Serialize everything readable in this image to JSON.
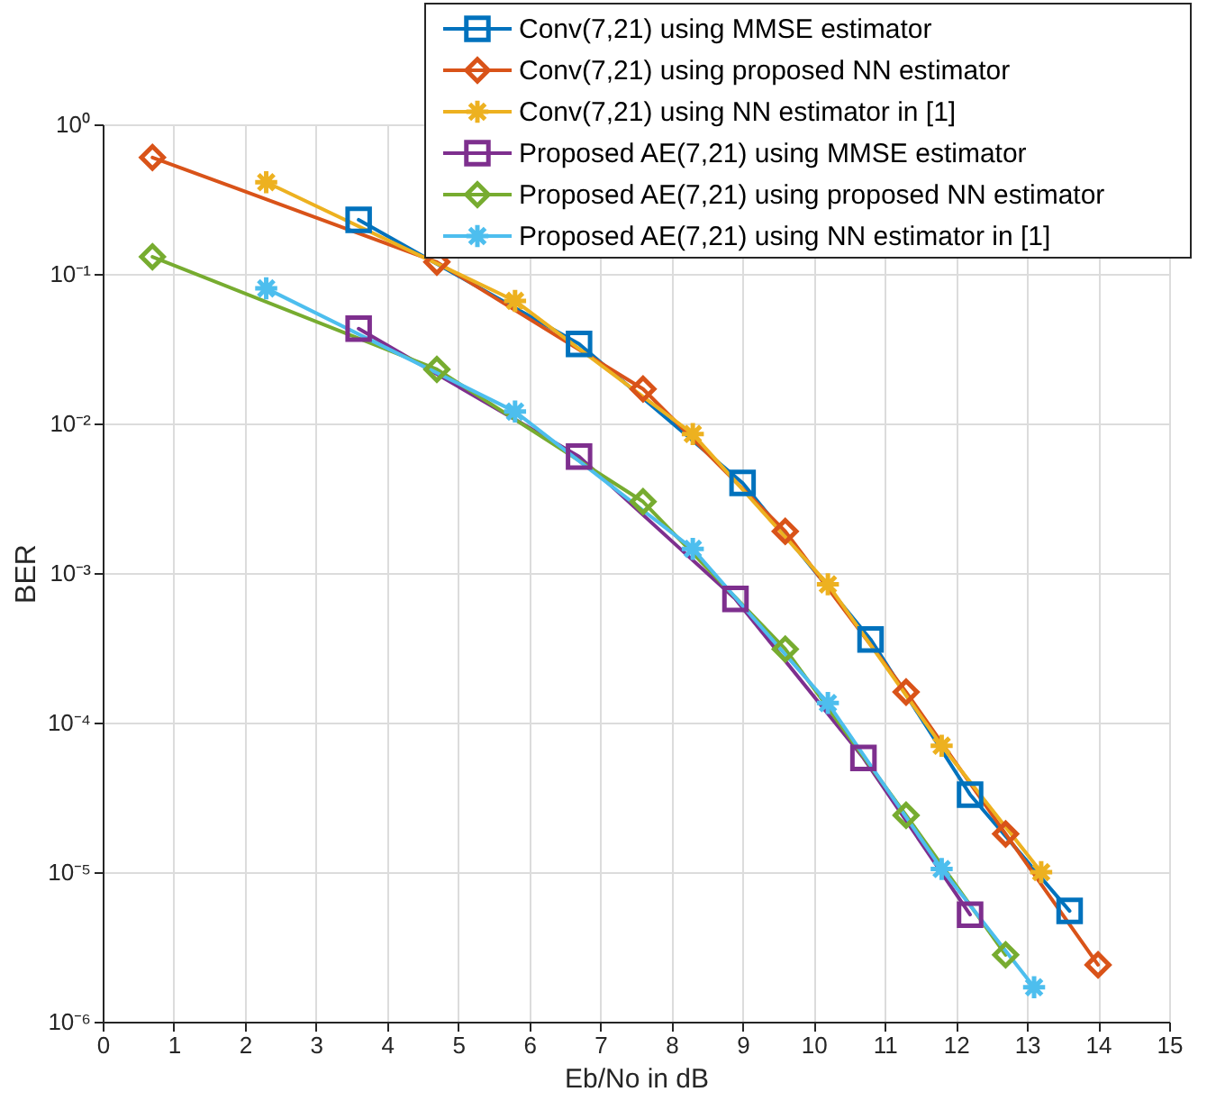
{
  "chart_data": {
    "type": "line",
    "xlabel": "Eb/No in dB",
    "ylabel": "BER",
    "log": "y",
    "grid": true,
    "legend": "top right",
    "line_style": "solid",
    "xlim": [
      0,
      15
    ],
    "xticks": [
      0,
      1,
      2,
      3,
      4,
      5,
      6,
      7,
      8,
      9,
      10,
      11,
      12,
      13,
      14,
      15
    ],
    "ylim": [
      1e-06,
      1
    ],
    "yticks": [
      {
        "value": 1e-06,
        "label": "10⁻⁶"
      },
      {
        "value": 1e-05,
        "label": "10⁻⁵"
      },
      {
        "value": 0.0001,
        "label": "10⁻⁴"
      },
      {
        "value": 0.001,
        "label": "10⁻³"
      },
      {
        "value": 0.01,
        "label": "10⁻²"
      },
      {
        "value": 0.1,
        "label": "10⁻¹"
      },
      {
        "value": 1,
        "label": "10⁰"
      }
    ],
    "series": [
      {
        "name": "Conv(7,21) using MMSE estimator",
        "color": "#0072bd",
        "marker": "square",
        "x": [
          3.6,
          6.7,
          9.0,
          10.8,
          12.2,
          13.6
        ],
        "values": [
          0.23,
          0.034,
          0.004,
          0.00036,
          3.3e-05,
          5.5e-06
        ]
      },
      {
        "name": "Conv(7,21) using proposed NN estimator",
        "color": "#d95319",
        "marker": "diamond",
        "x": [
          0.7,
          4.7,
          7.6,
          9.6,
          11.3,
          12.7,
          14.0
        ],
        "values": [
          0.6,
          0.12,
          0.017,
          0.0019,
          0.00016,
          1.8e-05,
          2.4e-06
        ]
      },
      {
        "name": "Conv(7,21) using NN estimator in [1]",
        "color": "#edb120",
        "marker": "cross",
        "x": [
          2.3,
          5.8,
          8.3,
          10.2,
          11.8,
          13.2
        ],
        "values": [
          0.41,
          0.066,
          0.0085,
          0.00084,
          7e-05,
          1e-05
        ]
      },
      {
        "name": "Proposed AE(7,21) using MMSE estimator",
        "color": "#7e2f8e",
        "marker": "square",
        "x": [
          3.6,
          6.7,
          8.9,
          10.7,
          12.2
        ],
        "values": [
          0.043,
          0.006,
          0.00067,
          5.8e-05,
          5.2e-06
        ]
      },
      {
        "name": "Proposed AE(7,21)  using proposed NN estimator",
        "color": "#77ac30",
        "marker": "diamond",
        "x": [
          0.7,
          4.7,
          7.6,
          9.6,
          11.3,
          12.7
        ],
        "values": [
          0.13,
          0.023,
          0.003,
          0.00031,
          2.4e-05,
          2.8e-06
        ]
      },
      {
        "name": "Proposed AE(7,21) using NN estimator in [1]",
        "color": "#4dbeee",
        "marker": "cross",
        "x": [
          2.3,
          5.8,
          8.3,
          10.2,
          11.8,
          13.1
        ],
        "values": [
          0.08,
          0.012,
          0.00145,
          0.000135,
          1.05e-05,
          1.7e-06
        ]
      }
    ]
  }
}
